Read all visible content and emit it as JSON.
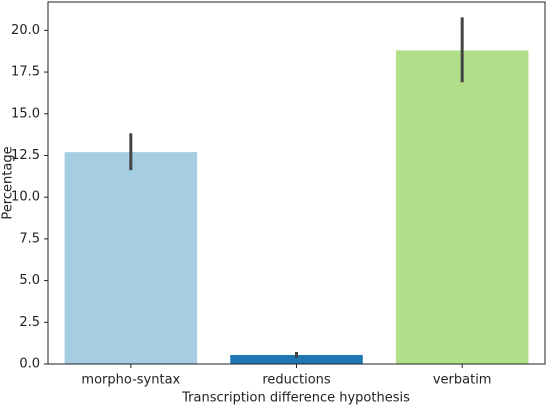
{
  "chart_data": {
    "type": "bar",
    "xlabel": "Transcription difference hypothesis",
    "ylabel": "Percentage",
    "categories": [
      "morpho-syntax",
      "reductions",
      "verbatim"
    ],
    "values": [
      12.7,
      0.54,
      18.8
    ],
    "ci_low": [
      11.62,
      0.36,
      16.89
    ],
    "ci_high": [
      13.83,
      0.72,
      20.78
    ],
    "colors": [
      "#a6cee3",
      "#1f78b4",
      "#b2df8a"
    ],
    "ylim": [
      0,
      21.7
    ],
    "yticks": [
      {
        "value": 0,
        "label": "0.0"
      },
      2.5,
      {
        "value": 5,
        "label": "5.0"
      },
      7.5,
      {
        "value": 10,
        "label": "10.0"
      },
      12.5,
      {
        "value": 15,
        "label": "15.0"
      },
      17.5,
      {
        "value": 20,
        "label": "20.0"
      }
    ]
  }
}
